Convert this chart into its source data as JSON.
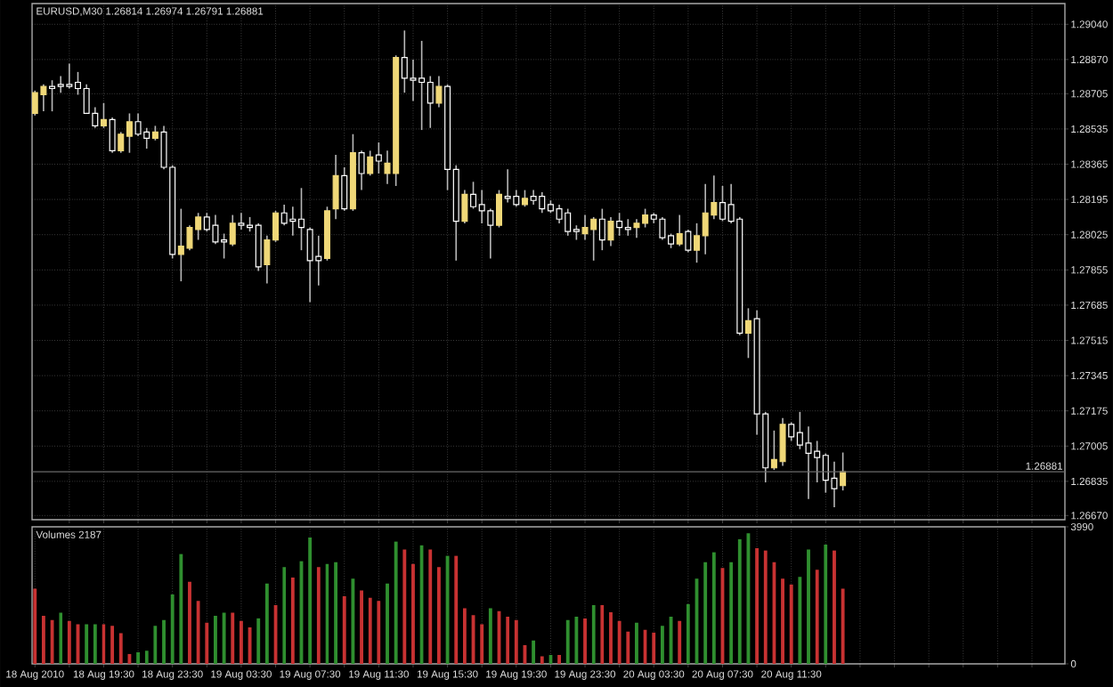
{
  "chart_data": [
    {
      "type": "candlestick",
      "title": "EURUSD,M30 1.26814 1.26974 1.26791 1.26881",
      "x": [
        "2010-08-18T15:30",
        "2010-08-18T16:00",
        "2010-08-18T16:30",
        "2010-08-18T17:00",
        "2010-08-18T17:30",
        "2010-08-18T18:00",
        "2010-08-18T18:30",
        "2010-08-18T19:00",
        "2010-08-18T19:30",
        "2010-08-18T20:00",
        "2010-08-18T20:30",
        "2010-08-18T21:00",
        "2010-08-18T21:30",
        "2010-08-18T22:00",
        "2010-08-18T22:30",
        "2010-08-18T23:00",
        "2010-08-18T23:30",
        "2010-08-19T00:00",
        "2010-08-19T00:30",
        "2010-08-19T01:00",
        "2010-08-19T01:30",
        "2010-08-19T02:00",
        "2010-08-19T02:30",
        "2010-08-19T03:00",
        "2010-08-19T03:30",
        "2010-08-19T04:00",
        "2010-08-19T04:30",
        "2010-08-19T05:00",
        "2010-08-19T05:30",
        "2010-08-19T06:00",
        "2010-08-19T06:30",
        "2010-08-19T07:00",
        "2010-08-19T07:30",
        "2010-08-19T08:00",
        "2010-08-19T08:30",
        "2010-08-19T09:00",
        "2010-08-19T09:30",
        "2010-08-19T10:00",
        "2010-08-19T10:30",
        "2010-08-19T11:00",
        "2010-08-19T11:30",
        "2010-08-19T12:00",
        "2010-08-19T12:30",
        "2010-08-19T13:00",
        "2010-08-19T13:30",
        "2010-08-19T14:00",
        "2010-08-19T14:30",
        "2010-08-19T15:00",
        "2010-08-19T15:30",
        "2010-08-19T16:00",
        "2010-08-19T16:30",
        "2010-08-19T17:00",
        "2010-08-19T17:30",
        "2010-08-19T18:00",
        "2010-08-19T18:30",
        "2010-08-19T19:00",
        "2010-08-19T19:30",
        "2010-08-19T20:00",
        "2010-08-19T20:30",
        "2010-08-19T21:00",
        "2010-08-19T21:30",
        "2010-08-19T22:00",
        "2010-08-19T22:30",
        "2010-08-19T23:00",
        "2010-08-19T23:30",
        "2010-08-20T00:00",
        "2010-08-20T00:30",
        "2010-08-20T01:00",
        "2010-08-20T01:30",
        "2010-08-20T02:00",
        "2010-08-20T02:30",
        "2010-08-20T03:00",
        "2010-08-20T03:30",
        "2010-08-20T04:00",
        "2010-08-20T04:30",
        "2010-08-20T05:00",
        "2010-08-20T05:30",
        "2010-08-20T06:00",
        "2010-08-20T06:30",
        "2010-08-20T07:00",
        "2010-08-20T07:30",
        "2010-08-20T08:00",
        "2010-08-20T08:30",
        "2010-08-20T09:00",
        "2010-08-20T09:30",
        "2010-08-20T10:00",
        "2010-08-20T10:30",
        "2010-08-20T11:00",
        "2010-08-20T11:30",
        "2010-08-20T12:00",
        "2010-08-20T12:30",
        "2010-08-20T13:00",
        "2010-08-20T13:30",
        "2010-08-20T14:00",
        "2010-08-20T14:30"
      ],
      "ohlc": [
        [
          1.2861,
          1.2872,
          1.286,
          1.2871
        ],
        [
          1.287,
          1.2875,
          1.2862,
          1.2874
        ],
        [
          1.2874,
          1.2877,
          1.2862,
          1.2873
        ],
        [
          1.2875,
          1.2879,
          1.2871,
          1.2874
        ],
        [
          1.2875,
          1.2885,
          1.2873,
          1.2874
        ],
        [
          1.2876,
          1.2881,
          1.287,
          1.2873
        ],
        [
          1.2873,
          1.2875,
          1.2861,
          1.2861
        ],
        [
          1.2861,
          1.2864,
          1.2854,
          1.2855
        ],
        [
          1.2855,
          1.2866,
          1.2854,
          1.2858
        ],
        [
          1.2858,
          1.2859,
          1.2842,
          1.2843
        ],
        [
          1.2843,
          1.2852,
          1.2842,
          1.2851
        ],
        [
          1.285,
          1.2861,
          1.2842,
          1.2857
        ],
        [
          1.2857,
          1.2861,
          1.285,
          1.2851
        ],
        [
          1.2852,
          1.2854,
          1.2844,
          1.2849
        ],
        [
          1.2849,
          1.2855,
          1.2848,
          1.2852
        ],
        [
          1.2852,
          1.2855,
          1.2834,
          1.2835
        ],
        [
          1.2835,
          1.2836,
          1.2791,
          1.2793
        ],
        [
          1.2793,
          1.2815,
          1.278,
          1.2797
        ],
        [
          1.2796,
          1.2807,
          1.2795,
          1.2806
        ],
        [
          1.2805,
          1.2813,
          1.28,
          1.2811
        ],
        [
          1.2811,
          1.2813,
          1.2804,
          1.2805
        ],
        [
          1.2807,
          1.2812,
          1.2798,
          1.2799
        ],
        [
          1.28,
          1.2803,
          1.2791,
          1.2799
        ],
        [
          1.2798,
          1.2812,
          1.2797,
          1.2808
        ],
        [
          1.2808,
          1.2813,
          1.2805,
          1.2807
        ],
        [
          1.2807,
          1.2811,
          1.2804,
          1.2806
        ],
        [
          1.2807,
          1.2808,
          1.2785,
          1.2787
        ],
        [
          1.2788,
          1.2802,
          1.2779,
          1.28
        ],
        [
          1.28,
          1.2814,
          1.2799,
          1.2813
        ],
        [
          1.2813,
          1.2817,
          1.2807,
          1.2808
        ],
        [
          1.281,
          1.2816,
          1.2802,
          1.2809
        ],
        [
          1.281,
          1.2825,
          1.2795,
          1.2806
        ],
        [
          1.2805,
          1.2806,
          1.277,
          1.279
        ],
        [
          1.2792,
          1.2802,
          1.2778,
          1.279
        ],
        [
          1.2791,
          1.2816,
          1.279,
          1.2814
        ],
        [
          1.2815,
          1.2841,
          1.281,
          1.2831
        ],
        [
          1.2831,
          1.2835,
          1.2814,
          1.2815
        ],
        [
          1.2815,
          1.2851,
          1.2814,
          1.2842
        ],
        [
          1.2842,
          1.2843,
          1.2824,
          1.2832
        ],
        [
          1.2832,
          1.2843,
          1.2831,
          1.284
        ],
        [
          1.2841,
          1.2847,
          1.2832,
          1.2838
        ],
        [
          1.2832,
          1.2843,
          1.2827,
          1.2837
        ],
        [
          1.2832,
          1.2889,
          1.2826,
          1.2888
        ],
        [
          1.2888,
          1.2901,
          1.2871,
          1.2878
        ],
        [
          1.2878,
          1.2887,
          1.2867,
          1.2877
        ],
        [
          1.2878,
          1.2896,
          1.2853,
          1.2876
        ],
        [
          1.2876,
          1.2879,
          1.2854,
          1.2866
        ],
        [
          1.2866,
          1.2879,
          1.2864,
          1.2874
        ],
        [
          1.2874,
          1.2875,
          1.2824,
          1.2834
        ],
        [
          1.2834,
          1.2836,
          1.279,
          1.2809
        ],
        [
          1.2809,
          1.2824,
          1.2808,
          1.2822
        ],
        [
          1.2822,
          1.2828,
          1.2815,
          1.2816
        ],
        [
          1.2817,
          1.2824,
          1.2808,
          1.2814
        ],
        [
          1.2814,
          1.2815,
          1.2791,
          1.2807
        ],
        [
          1.2807,
          1.2824,
          1.2806,
          1.2822
        ],
        [
          1.2821,
          1.2834,
          1.2818,
          1.282
        ],
        [
          1.2821,
          1.2824,
          1.2816,
          1.2817
        ],
        [
          1.2817,
          1.2824,
          1.2816,
          1.282
        ],
        [
          1.2821,
          1.2824,
          1.2817,
          1.2819
        ],
        [
          1.2821,
          1.2823,
          1.2813,
          1.2815
        ],
        [
          1.2817,
          1.2819,
          1.2813,
          1.2814
        ],
        [
          1.2815,
          1.2817,
          1.2808,
          1.281
        ],
        [
          1.2813,
          1.2815,
          1.2802,
          1.2804
        ],
        [
          1.2805,
          1.2807,
          1.28,
          1.2804
        ],
        [
          1.2803,
          1.2812,
          1.28,
          1.2806
        ],
        [
          1.2805,
          1.2811,
          1.279,
          1.281
        ],
        [
          1.281,
          1.2815,
          1.2795,
          1.28
        ],
        [
          1.28,
          1.2811,
          1.2797,
          1.2809
        ],
        [
          1.2809,
          1.2813,
          1.2802,
          1.2806
        ],
        [
          1.2806,
          1.281,
          1.2802,
          1.2805
        ],
        [
          1.2806,
          1.281,
          1.2801,
          1.2808
        ],
        [
          1.2808,
          1.2815,
          1.2806,
          1.2812
        ],
        [
          1.2812,
          1.2813,
          1.2808,
          1.281
        ],
        [
          1.281,
          1.2811,
          1.28,
          1.2801
        ],
        [
          1.2802,
          1.2803,
          1.2796,
          1.2798
        ],
        [
          1.2798,
          1.2812,
          1.2797,
          1.2803
        ],
        [
          1.2804,
          1.2805,
          1.2794,
          1.2795
        ],
        [
          1.2795,
          1.2808,
          1.2789,
          1.2802
        ],
        [
          1.2802,
          1.2827,
          1.2793,
          1.2813
        ],
        [
          1.2812,
          1.2831,
          1.281,
          1.2818
        ],
        [
          1.2818,
          1.2826,
          1.2809,
          1.281
        ],
        [
          1.2817,
          1.2827,
          1.2808,
          1.2809
        ],
        [
          1.281,
          1.2811,
          1.2754,
          1.2755
        ],
        [
          1.2755,
          1.2767,
          1.2743,
          1.2761
        ],
        [
          1.2762,
          1.2766,
          1.2706,
          1.2716
        ],
        [
          1.2716,
          1.2717,
          1.2683,
          1.269
        ],
        [
          1.269,
          1.2708,
          1.2689,
          1.2694
        ],
        [
          1.2693,
          1.2714,
          1.2691,
          1.2711
        ],
        [
          1.2711,
          1.2712,
          1.2703,
          1.2705
        ],
        [
          1.2707,
          1.2717,
          1.2699,
          1.2701
        ],
        [
          1.2702,
          1.271,
          1.2675,
          1.2697
        ],
        [
          1.2698,
          1.2703,
          1.2683,
          1.2695
        ],
        [
          1.2696,
          1.2697,
          1.2678,
          1.2684
        ],
        [
          1.2685,
          1.2693,
          1.2671,
          1.268
        ],
        [
          1.26814,
          1.26974,
          1.26791,
          1.26881
        ]
      ],
      "colors": [
        "#f0d878",
        "#f0d878",
        "#000000",
        "#000000",
        "#000000",
        "#000000",
        "#000000",
        "#000000",
        "#f0d878",
        "#000000",
        "#f0d878",
        "#f0d878",
        "#000000",
        "#000000",
        "#f0d878",
        "#000000",
        "#000000",
        "#f0d878",
        "#f0d878",
        "#f0d878",
        "#000000",
        "#000000",
        "#000000",
        "#f0d878",
        "#000000",
        "#000000",
        "#000000",
        "#f0d878",
        "#f0d878",
        "#000000",
        "#000000",
        "#000000",
        "#000000",
        "#000000",
        "#f0d878",
        "#f0d878",
        "#000000",
        "#f0d878",
        "#000000",
        "#f0d878",
        "#000000",
        "#f0d878",
        "#f0d878",
        "#000000",
        "#000000",
        "#000000",
        "#000000",
        "#f0d878",
        "#000000",
        "#000000",
        "#f0d878",
        "#000000",
        "#000000",
        "#000000",
        "#f0d878",
        "#000000",
        "#000000",
        "#f0d878",
        "#000000",
        "#000000",
        "#000000",
        "#000000",
        "#000000",
        "#000000",
        "#f0d878",
        "#f0d878",
        "#000000",
        "#f0d878",
        "#000000",
        "#000000",
        "#f0d878",
        "#f0d878",
        "#000000",
        "#000000",
        "#000000",
        "#f0d878",
        "#000000",
        "#f0d878",
        "#f0d878",
        "#f0d878",
        "#000000",
        "#000000",
        "#000000",
        "#f0d878",
        "#000000",
        "#000000",
        "#f0d878",
        "#f0d878",
        "#000000",
        "#000000",
        "#000000",
        "#000000",
        "#000000",
        "#000000",
        "#f0d878"
      ],
      "xlim": [
        "2010-08-18T15:20",
        "2010-08-21T03:25"
      ],
      "ylim": [
        1.2665,
        1.2914
      ],
      "xticks": [
        {
          "value": "2010-08-18T17:30",
          "label": null
        },
        {
          "value": "2010-08-18T19:30",
          "label": null
        },
        {
          "value": "2010-08-18T21:30",
          "label": null
        },
        {
          "value": "2010-08-18T23:30",
          "label": null
        },
        {
          "value": "2010-08-19T01:30",
          "label": null
        },
        {
          "value": "2010-08-19T03:30",
          "label": null
        },
        {
          "value": "2010-08-19T05:30",
          "label": null
        },
        {
          "value": "2010-08-19T07:30",
          "label": null
        },
        {
          "value": "2010-08-19T09:30",
          "label": null
        },
        {
          "value": "2010-08-19T11:30",
          "label": null
        },
        {
          "value": "2010-08-19T13:30",
          "label": null
        },
        {
          "value": "2010-08-19T15:30",
          "label": null
        },
        {
          "value": "2010-08-19T17:30",
          "label": null
        },
        {
          "value": "2010-08-19T19:30",
          "label": null
        },
        {
          "value": "2010-08-19T21:30",
          "label": null
        },
        {
          "value": "2010-08-19T23:30",
          "label": null
        },
        {
          "value": "2010-08-20T01:30",
          "label": null
        },
        {
          "value": "2010-08-20T03:30",
          "label": null
        },
        {
          "value": "2010-08-20T05:30",
          "label": null
        },
        {
          "value": "2010-08-20T07:30",
          "label": null
        },
        {
          "value": "2010-08-20T09:30",
          "label": null
        },
        {
          "value": "2010-08-20T11:30",
          "label": null
        },
        {
          "value": "2010-08-20T13:30",
          "label": null
        },
        {
          "value": "2010-08-20T15:30",
          "label": null
        },
        {
          "value": "2010-08-20T17:30",
          "label": null
        },
        {
          "value": "2010-08-20T19:30",
          "label": null
        },
        {
          "value": "2010-08-20T21:30",
          "label": null
        },
        {
          "value": "2010-08-20T23:30",
          "label": null
        },
        {
          "value": "2010-08-21T01:30",
          "label": null
        }
      ],
      "yticks": [
        {
          "value": 1.2667,
          "label": "1.26670"
        },
        {
          "value": 1.26835,
          "label": "1.26835"
        },
        {
          "value": 1.27005,
          "label": "1.27005"
        },
        {
          "value": 1.27175,
          "label": "1.27175"
        },
        {
          "value": 1.27345,
          "label": "1.27345"
        },
        {
          "value": 1.27515,
          "label": "1.27515"
        },
        {
          "value": 1.27685,
          "label": "1.27685"
        },
        {
          "value": 1.27855,
          "label": "1.27855"
        },
        {
          "value": 1.28025,
          "label": "1.28025"
        },
        {
          "value": 1.28195,
          "label": "1.28195"
        },
        {
          "value": 1.28365,
          "label": "1.28365"
        },
        {
          "value": 1.28535,
          "label": "1.28535"
        },
        {
          "value": 1.28705,
          "label": "1.28705"
        },
        {
          "value": 1.2887,
          "label": "1.28870"
        },
        {
          "value": 1.2904,
          "label": "1.29040"
        }
      ],
      "grid": true,
      "tick_labels": "y",
      "ref_lines": [
        {
          "axis": "y",
          "value": 1.26881,
          "label": "1.26881",
          "color": "#6a6a6a"
        }
      ]
    },
    {
      "type": "bar",
      "title": "Volumes 2187",
      "x": [
        "2010-08-18T15:30",
        "2010-08-18T16:00",
        "2010-08-18T16:30",
        "2010-08-18T17:00",
        "2010-08-18T17:30",
        "2010-08-18T18:00",
        "2010-08-18T18:30",
        "2010-08-18T19:00",
        "2010-08-18T19:30",
        "2010-08-18T20:00",
        "2010-08-18T20:30",
        "2010-08-18T21:00",
        "2010-08-18T21:30",
        "2010-08-18T22:00",
        "2010-08-18T22:30",
        "2010-08-18T23:00",
        "2010-08-18T23:30",
        "2010-08-19T00:00",
        "2010-08-19T00:30",
        "2010-08-19T01:00",
        "2010-08-19T01:30",
        "2010-08-19T02:00",
        "2010-08-19T02:30",
        "2010-08-19T03:00",
        "2010-08-19T03:30",
        "2010-08-19T04:00",
        "2010-08-19T04:30",
        "2010-08-19T05:00",
        "2010-08-19T05:30",
        "2010-08-19T06:00",
        "2010-08-19T06:30",
        "2010-08-19T07:00",
        "2010-08-19T07:30",
        "2010-08-19T08:00",
        "2010-08-19T08:30",
        "2010-08-19T09:00",
        "2010-08-19T09:30",
        "2010-08-19T10:00",
        "2010-08-19T10:30",
        "2010-08-19T11:00",
        "2010-08-19T11:30",
        "2010-08-19T12:00",
        "2010-08-19T12:30",
        "2010-08-19T13:00",
        "2010-08-19T13:30",
        "2010-08-19T14:00",
        "2010-08-19T14:30",
        "2010-08-19T15:00",
        "2010-08-19T15:30",
        "2010-08-19T16:00",
        "2010-08-19T16:30",
        "2010-08-19T17:00",
        "2010-08-19T17:30",
        "2010-08-19T18:00",
        "2010-08-19T18:30",
        "2010-08-19T19:00",
        "2010-08-19T19:30",
        "2010-08-19T20:00",
        "2010-08-19T20:30",
        "2010-08-19T21:00",
        "2010-08-19T21:30",
        "2010-08-19T22:00",
        "2010-08-19T22:30",
        "2010-08-19T23:00",
        "2010-08-19T23:30",
        "2010-08-20T00:00",
        "2010-08-20T00:30",
        "2010-08-20T01:00",
        "2010-08-20T01:30",
        "2010-08-20T02:00",
        "2010-08-20T02:30",
        "2010-08-20T03:00",
        "2010-08-20T03:30",
        "2010-08-20T04:00",
        "2010-08-20T04:30",
        "2010-08-20T05:00",
        "2010-08-20T05:30",
        "2010-08-20T06:00",
        "2010-08-20T06:30",
        "2010-08-20T07:00",
        "2010-08-20T07:30",
        "2010-08-20T08:00",
        "2010-08-20T08:30",
        "2010-08-20T09:00",
        "2010-08-20T09:30",
        "2010-08-20T10:00",
        "2010-08-20T10:30",
        "2010-08-20T11:00",
        "2010-08-20T11:30",
        "2010-08-20T12:00",
        "2010-08-20T12:30",
        "2010-08-20T13:00",
        "2010-08-20T13:30",
        "2010-08-20T14:00",
        "2010-08-20T14:30"
      ],
      "values": [
        2190,
        1400,
        1280,
        1490,
        1250,
        1150,
        1150,
        1150,
        1150,
        1110,
        890,
        290,
        340,
        380,
        1110,
        1280,
        2020,
        3200,
        2390,
        1830,
        1200,
        1400,
        1490,
        1490,
        1250,
        1060,
        1330,
        2340,
        1710,
        2820,
        2510,
        2990,
        3680,
        2820,
        2910,
        2960,
        1970,
        2480,
        2140,
        1920,
        1830,
        2340,
        3560,
        3330,
        2910,
        3450,
        3330,
        2820,
        3150,
        3150,
        1620,
        1420,
        1150,
        1620,
        1540,
        1370,
        1280,
        550,
        680,
        220,
        260,
        260,
        1280,
        1370,
        1320,
        1710,
        1710,
        1500,
        1250,
        940,
        1200,
        990,
        910,
        1110,
        1370,
        1250,
        1740,
        2480,
        2960,
        3250,
        2790,
        2960,
        3630,
        3800,
        3370,
        3300,
        2960,
        2480,
        2310,
        2530,
        3330,
        2740,
        3470,
        3300,
        2187
      ],
      "colors": [
        "#c83232",
        "#c83232",
        "#c83232",
        "#2f8f2f",
        "#c83232",
        "#c83232",
        "#2f8f2f",
        "#2f8f2f",
        "#c83232",
        "#c83232",
        "#c83232",
        "#c83232",
        "#2f8f2f",
        "#2f8f2f",
        "#2f8f2f",
        "#2f8f2f",
        "#2f8f2f",
        "#2f8f2f",
        "#c83232",
        "#c83232",
        "#c83232",
        "#2f8f2f",
        "#2f8f2f",
        "#c83232",
        "#c83232",
        "#c83232",
        "#2f8f2f",
        "#2f8f2f",
        "#c83232",
        "#2f8f2f",
        "#c83232",
        "#2f8f2f",
        "#2f8f2f",
        "#c83232",
        "#2f8f2f",
        "#2f8f2f",
        "#c83232",
        "#2f8f2f",
        "#c83232",
        "#c83232",
        "#c83232",
        "#2f8f2f",
        "#2f8f2f",
        "#c83232",
        "#c83232",
        "#2f8f2f",
        "#c83232",
        "#c83232",
        "#2f8f2f",
        "#c83232",
        "#c83232",
        "#c83232",
        "#c83232",
        "#2f8f2f",
        "#c83232",
        "#c83232",
        "#c83232",
        "#c83232",
        "#2f8f2f",
        "#c83232",
        "#2f8f2f",
        "#c83232",
        "#2f8f2f",
        "#2f8f2f",
        "#c83232",
        "#2f8f2f",
        "#c83232",
        "#c83232",
        "#c83232",
        "#c83232",
        "#2f8f2f",
        "#c83232",
        "#c83232",
        "#2f8f2f",
        "#2f8f2f",
        "#c83232",
        "#2f8f2f",
        "#2f8f2f",
        "#2f8f2f",
        "#2f8f2f",
        "#c83232",
        "#2f8f2f",
        "#2f8f2f",
        "#2f8f2f",
        "#c83232",
        "#c83232",
        "#c83232",
        "#c83232",
        "#c83232",
        "#2f8f2f",
        "#2f8f2f",
        "#c83232",
        "#2f8f2f",
        "#c83232",
        "#c83232"
      ],
      "xlim": [
        "2010-08-18T15:20",
        "2010-08-21T03:25"
      ],
      "ylim": [
        0,
        3990
      ],
      "xticks": [
        {
          "value": "2010-08-18T15:30",
          "label": "18 Aug 2010"
        },
        {
          "value": "2010-08-18T17:30",
          "label": null
        },
        {
          "value": "2010-08-18T19:30",
          "label": "18 Aug 19:30"
        },
        {
          "value": "2010-08-18T21:30",
          "label": null
        },
        {
          "value": "2010-08-18T23:30",
          "label": "18 Aug 23:30"
        },
        {
          "value": "2010-08-19T01:30",
          "label": null
        },
        {
          "value": "2010-08-19T03:30",
          "label": "19 Aug 03:30"
        },
        {
          "value": "2010-08-19T05:30",
          "label": null
        },
        {
          "value": "2010-08-19T07:30",
          "label": "19 Aug 07:30"
        },
        {
          "value": "2010-08-19T09:30",
          "label": null
        },
        {
          "value": "2010-08-19T11:30",
          "label": "19 Aug 11:30"
        },
        {
          "value": "2010-08-19T13:30",
          "label": null
        },
        {
          "value": "2010-08-19T15:30",
          "label": "19 Aug 15:30"
        },
        {
          "value": "2010-08-19T17:30",
          "label": null
        },
        {
          "value": "2010-08-19T19:30",
          "label": "19 Aug 19:30"
        },
        {
          "value": "2010-08-19T21:30",
          "label": null
        },
        {
          "value": "2010-08-19T23:30",
          "label": "19 Aug 23:30"
        },
        {
          "value": "2010-08-20T01:30",
          "label": null
        },
        {
          "value": "2010-08-20T03:30",
          "label": "20 Aug 03:30"
        },
        {
          "value": "2010-08-20T05:30",
          "label": null
        },
        {
          "value": "2010-08-20T07:30",
          "label": "20 Aug 07:30"
        },
        {
          "value": "2010-08-20T09:30",
          "label": null
        },
        {
          "value": "2010-08-20T11:30",
          "label": "20 Aug 11:30"
        },
        {
          "value": "2010-08-20T13:30",
          "label": null
        },
        {
          "value": "2010-08-20T15:30",
          "label": null
        },
        {
          "value": "2010-08-20T17:30",
          "label": null
        },
        {
          "value": "2010-08-20T19:30",
          "label": null
        },
        {
          "value": "2010-08-20T21:30",
          "label": null
        },
        {
          "value": "2010-08-20T23:30",
          "label": null
        },
        {
          "value": "2010-08-21T01:30",
          "label": null
        }
      ],
      "yticks": [
        0,
        3990
      ],
      "grid": "x"
    }
  ]
}
